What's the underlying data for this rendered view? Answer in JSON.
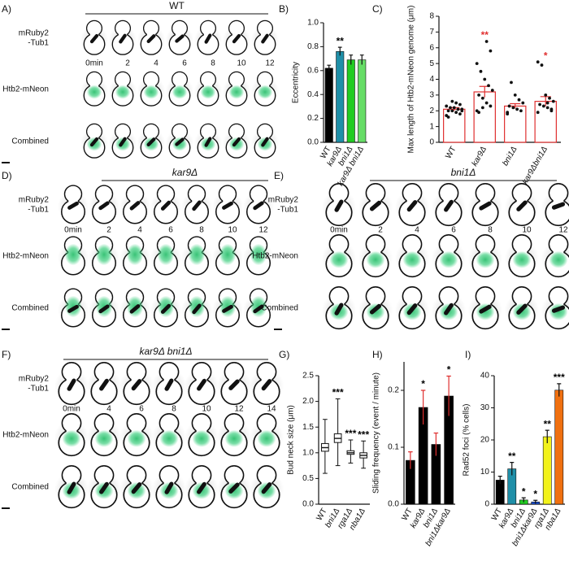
{
  "panels": [
    {
      "label": "A)",
      "title": "WT",
      "row_labels": [
        [
          "mRuby2",
          "-Tub1"
        ],
        [
          "Htb2-mNeon"
        ],
        [
          "Combined"
        ]
      ],
      "times": [
        "0min",
        "2",
        "4",
        "6",
        "8",
        "10",
        "12"
      ]
    },
    {
      "label": "D)",
      "title": "kar9Δ",
      "row_labels": [
        [
          "mRuby2",
          "-Tub1"
        ],
        [
          "Htb2-mNeon"
        ],
        [
          "Combined"
        ]
      ],
      "times": [
        "0min",
        "2",
        "4",
        "6",
        "8",
        "10",
        "12"
      ]
    },
    {
      "label": "E)",
      "title": "bni1Δ",
      "row_labels": [
        [
          "mRuby2",
          "-Tub1"
        ],
        [
          "Htb2-mNeon"
        ],
        [
          "Combined"
        ]
      ],
      "times": [
        "0min",
        "2",
        "4",
        "6",
        "8",
        "10",
        "12"
      ]
    },
    {
      "label": "F)",
      "title": "kar9Δ bni1Δ",
      "row_labels": [
        [
          "mRuby2",
          "-Tub1"
        ],
        [
          "Htb2-mNeon"
        ],
        [
          "Combined"
        ]
      ],
      "times": [
        "0min",
        "4",
        "6",
        "8",
        "10",
        "12",
        "14"
      ]
    }
  ],
  "chart_data": [
    {
      "label": "B)",
      "type": "bar",
      "ylabel": "Eccentricity",
      "categories": [
        "WT",
        "kar9Δ",
        "bni1Δ",
        "kar9Δ bni1Δ"
      ],
      "values": [
        0.62,
        0.76,
        0.69,
        0.69
      ],
      "errors": [
        0.025,
        0.035,
        0.04,
        0.04
      ],
      "colors": [
        "#000000",
        "#1f8fa8",
        "#22cc22",
        "#66dd66"
      ],
      "ylim": [
        0,
        1
      ],
      "yticks": [
        {
          "value": 0,
          "label": "0.0"
        },
        0.2,
        0.4,
        0.6,
        0.8,
        {
          "value": 1,
          "label": "1.0"
        }
      ],
      "annotations": [
        {
          "category": "kar9Δ",
          "text": "**",
          "color": "#000000"
        }
      ]
    },
    {
      "label": "C)",
      "type": "bar",
      "ylabel": "Max length of Htb2-mNeon genome (μm)",
      "categories": [
        "WT",
        "kar9Δ",
        "bni1Δ",
        "kar9Δbni1Δ"
      ],
      "values": [
        2.1,
        3.2,
        2.3,
        2.6
      ],
      "errors": [
        0.1,
        0.35,
        0.15,
        0.3
      ],
      "colors": [
        "#ffffff",
        "#ffffff",
        "#ffffff",
        "#ffffff"
      ],
      "edgecolor": "#e03030",
      "points": [
        [
          1.7,
          1.8,
          1.9,
          2.0,
          2.0,
          2.1,
          2.1,
          2.2,
          2.2,
          2.3,
          2.4,
          2.5,
          2.6,
          1.6,
          2.0
        ],
        [
          2.0,
          2.3,
          2.5,
          2.8,
          3.0,
          3.3,
          3.6,
          4.0,
          4.5,
          5.0,
          5.8,
          6.4,
          2.2,
          1.9
        ],
        [
          1.8,
          2.0,
          2.1,
          2.2,
          2.3,
          2.5,
          2.7,
          3.0,
          3.8,
          1.9
        ],
        [
          1.9,
          2.1,
          2.2,
          2.3,
          2.4,
          2.6,
          2.8,
          3.0,
          4.9,
          5.1,
          2.0,
          2.5
        ]
      ],
      "ylim": [
        0,
        8
      ],
      "yticks": [
        0,
        1,
        2,
        3,
        4,
        5,
        6,
        7,
        8
      ],
      "annotations": [
        {
          "category": "kar9Δ",
          "text": "**",
          "color": "#e03030"
        },
        {
          "category": "kar9Δbni1Δ",
          "text": "*",
          "color": "#e03030"
        }
      ]
    },
    {
      "label": "G)",
      "type": "box",
      "ylabel": "Bud neck size (μm)",
      "categories": [
        "WT",
        "bni1Δ",
        "rga1Δ",
        "nba1Δ"
      ],
      "boxes": [
        {
          "min": 0.6,
          "q1": 1.03,
          "median": 1.1,
          "q3": 1.18,
          "max": 1.65
        },
        {
          "min": 0.75,
          "q1": 1.2,
          "median": 1.28,
          "q3": 1.37,
          "max": 2.05
        },
        {
          "min": 0.8,
          "q1": 0.97,
          "median": 1.0,
          "q3": 1.04,
          "max": 1.25
        },
        {
          "min": 0.7,
          "q1": 0.9,
          "median": 0.95,
          "q3": 1.0,
          "max": 1.23
        }
      ],
      "ylim": [
        0,
        2.5
      ],
      "yticks": [
        {
          "value": 0,
          "label": "0.0"
        },
        0.5,
        {
          "value": 1,
          "label": "1.0"
        },
        1.5,
        {
          "value": 2,
          "label": "2.0"
        },
        2.5
      ],
      "annotations": [
        {
          "category": "bni1Δ",
          "text": "***",
          "color": "#000000"
        },
        {
          "category": "rga1Δ",
          "text": "***",
          "color": "#000000"
        },
        {
          "category": "nba1Δ",
          "text": "***",
          "color": "#000000"
        }
      ]
    },
    {
      "label": "H)",
      "type": "bar",
      "ylabel": "Sliding frequency (event / minute)",
      "categories": [
        "WT",
        "kar9Δ",
        "bni1Δ",
        "bni1Δkar9Δ"
      ],
      "values": [
        0.077,
        0.17,
        0.105,
        0.19
      ],
      "errors": [
        0.015,
        0.03,
        0.02,
        0.035
      ],
      "colors": [
        "#000000",
        "#000000",
        "#000000",
        "#000000"
      ],
      "errorcolor": "#e03030",
      "ylim": [
        0,
        0.25
      ],
      "yticks": [
        {
          "value": 0,
          "label": "0.0"
        },
        0.1,
        0.2
      ],
      "annotations": [
        {
          "category": "kar9Δ",
          "text": "*",
          "color": "#000000"
        },
        {
          "category": "bni1Δkar9Δ",
          "text": "*",
          "color": "#000000"
        }
      ]
    },
    {
      "label": "I)",
      "type": "bar",
      "ylabel": "Rad52 foci (% cells)",
      "categories": [
        "WT",
        "kar9Δ",
        "bni1Δ",
        "bni1Δkar9Δ",
        "rga1Δ",
        "nba1Δ"
      ],
      "values": [
        7.5,
        11,
        1.3,
        0.7,
        21,
        35.5
      ],
      "errors": [
        1.2,
        2,
        0.7,
        0.5,
        2,
        2
      ],
      "colors": [
        "#000000",
        "#1f8fa8",
        "#22cc22",
        "#1a4fd6",
        "#f2f21a",
        "#f07010"
      ],
      "ylim": [
        0,
        40
      ],
      "yticks": [
        0,
        10,
        20,
        30,
        40
      ],
      "annotations": [
        {
          "category": "kar9Δ",
          "text": "**",
          "color": "#000000"
        },
        {
          "category": "bni1Δ",
          "text": "*",
          "color": "#000000"
        },
        {
          "category": "bni1Δkar9Δ",
          "text": "*",
          "color": "#000000"
        },
        {
          "category": "rga1Δ",
          "text": "**",
          "color": "#000000"
        },
        {
          "category": "nba1Δ",
          "text": "***",
          "color": "#000000"
        }
      ]
    }
  ]
}
